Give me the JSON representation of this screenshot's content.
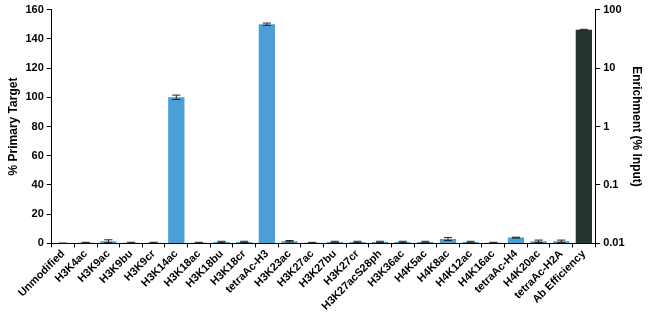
{
  "chart_data": {
    "type": "bar",
    "categories": [
      "Unmodified",
      "H3K4ac",
      "H3K9ac",
      "H3K9bu",
      "H3K9cr",
      "H3K14ac",
      "H3K18ac",
      "H3K18bu",
      "H3K18cr",
      "tetraAc-H3",
      "H3K23ac",
      "H3K27ac",
      "H3K27bu",
      "H3K27cr",
      "H3K27acS28ph",
      "H3K36ac",
      "H4K5ac",
      "H4K8ac",
      "H4K12ac",
      "H4K16ac",
      "tetraAc-H4",
      "H4K20ac",
      "tetraAc-H2A",
      "Ab Efficiency"
    ],
    "series": [
      {
        "color": "#4a9fd6",
        "values": [
          0,
          0.5,
          1.5,
          0.5,
          0.5,
          100,
          0.5,
          1,
          1,
          150,
          1.5,
          0.5,
          1,
          1,
          1,
          1,
          1,
          3,
          1,
          0.5,
          4,
          1.5,
          1.5,
          null
        ],
        "errors": [
          0.3,
          0.3,
          1,
          0.3,
          0.3,
          1.5,
          0.3,
          0.5,
          0.5,
          0.8,
          0.5,
          0.3,
          0.5,
          0.5,
          0.5,
          0.5,
          0.5,
          1,
          0.5,
          0.3,
          0.3,
          0.8,
          0.8,
          null
        ]
      },
      {
        "color": "#263530",
        "axis": "y2",
        "values": [
          null,
          null,
          null,
          null,
          null,
          null,
          null,
          null,
          null,
          null,
          null,
          null,
          null,
          null,
          null,
          null,
          null,
          null,
          null,
          null,
          null,
          null,
          null,
          45
        ],
        "errors": [
          null,
          null,
          null,
          null,
          null,
          null,
          null,
          null,
          null,
          null,
          null,
          null,
          null,
          null,
          null,
          null,
          null,
          null,
          null,
          null,
          null,
          null,
          null,
          1
        ]
      }
    ],
    "ylabel": "% Primary Target",
    "y2label": "Enrichment (% Input)",
    "ylim": [
      0,
      160
    ],
    "yticks": [
      0,
      20,
      40,
      60,
      80,
      100,
      120,
      140,
      160
    ],
    "y2lim": [
      0.01,
      100
    ],
    "y2ticks": [
      0.01,
      0.1,
      1,
      10,
      100
    ],
    "log": "y2",
    "grid": false
  }
}
